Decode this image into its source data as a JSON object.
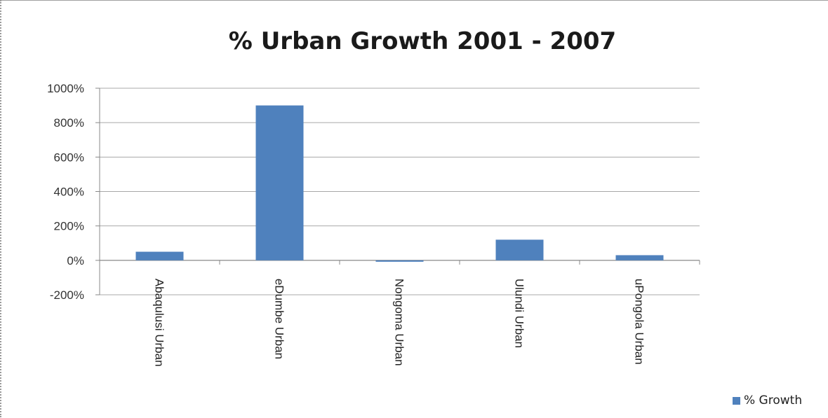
{
  "chart_data": {
    "type": "bar",
    "title": "% Urban Growth 2001 - 2007",
    "categories": [
      "Abaqulusi Urban",
      "eDumbe Urban",
      "Nongoma Urban",
      "Ulundi Urban",
      "uPongola Urban"
    ],
    "series": [
      {
        "name": "% Growth",
        "values": [
          50,
          900,
          -5,
          120,
          30
        ],
        "color": "#4f81bd"
      }
    ],
    "yticks": [
      "1000%",
      "800%",
      "600%",
      "400%",
      "200%",
      "0%",
      "-200%"
    ],
    "ytick_values": [
      1000,
      800,
      600,
      400,
      200,
      0,
      -200
    ],
    "negative_tick_color": "#e03030",
    "ylim": [
      -200,
      1000
    ],
    "grid": true,
    "legend_position": "bottom-right"
  }
}
